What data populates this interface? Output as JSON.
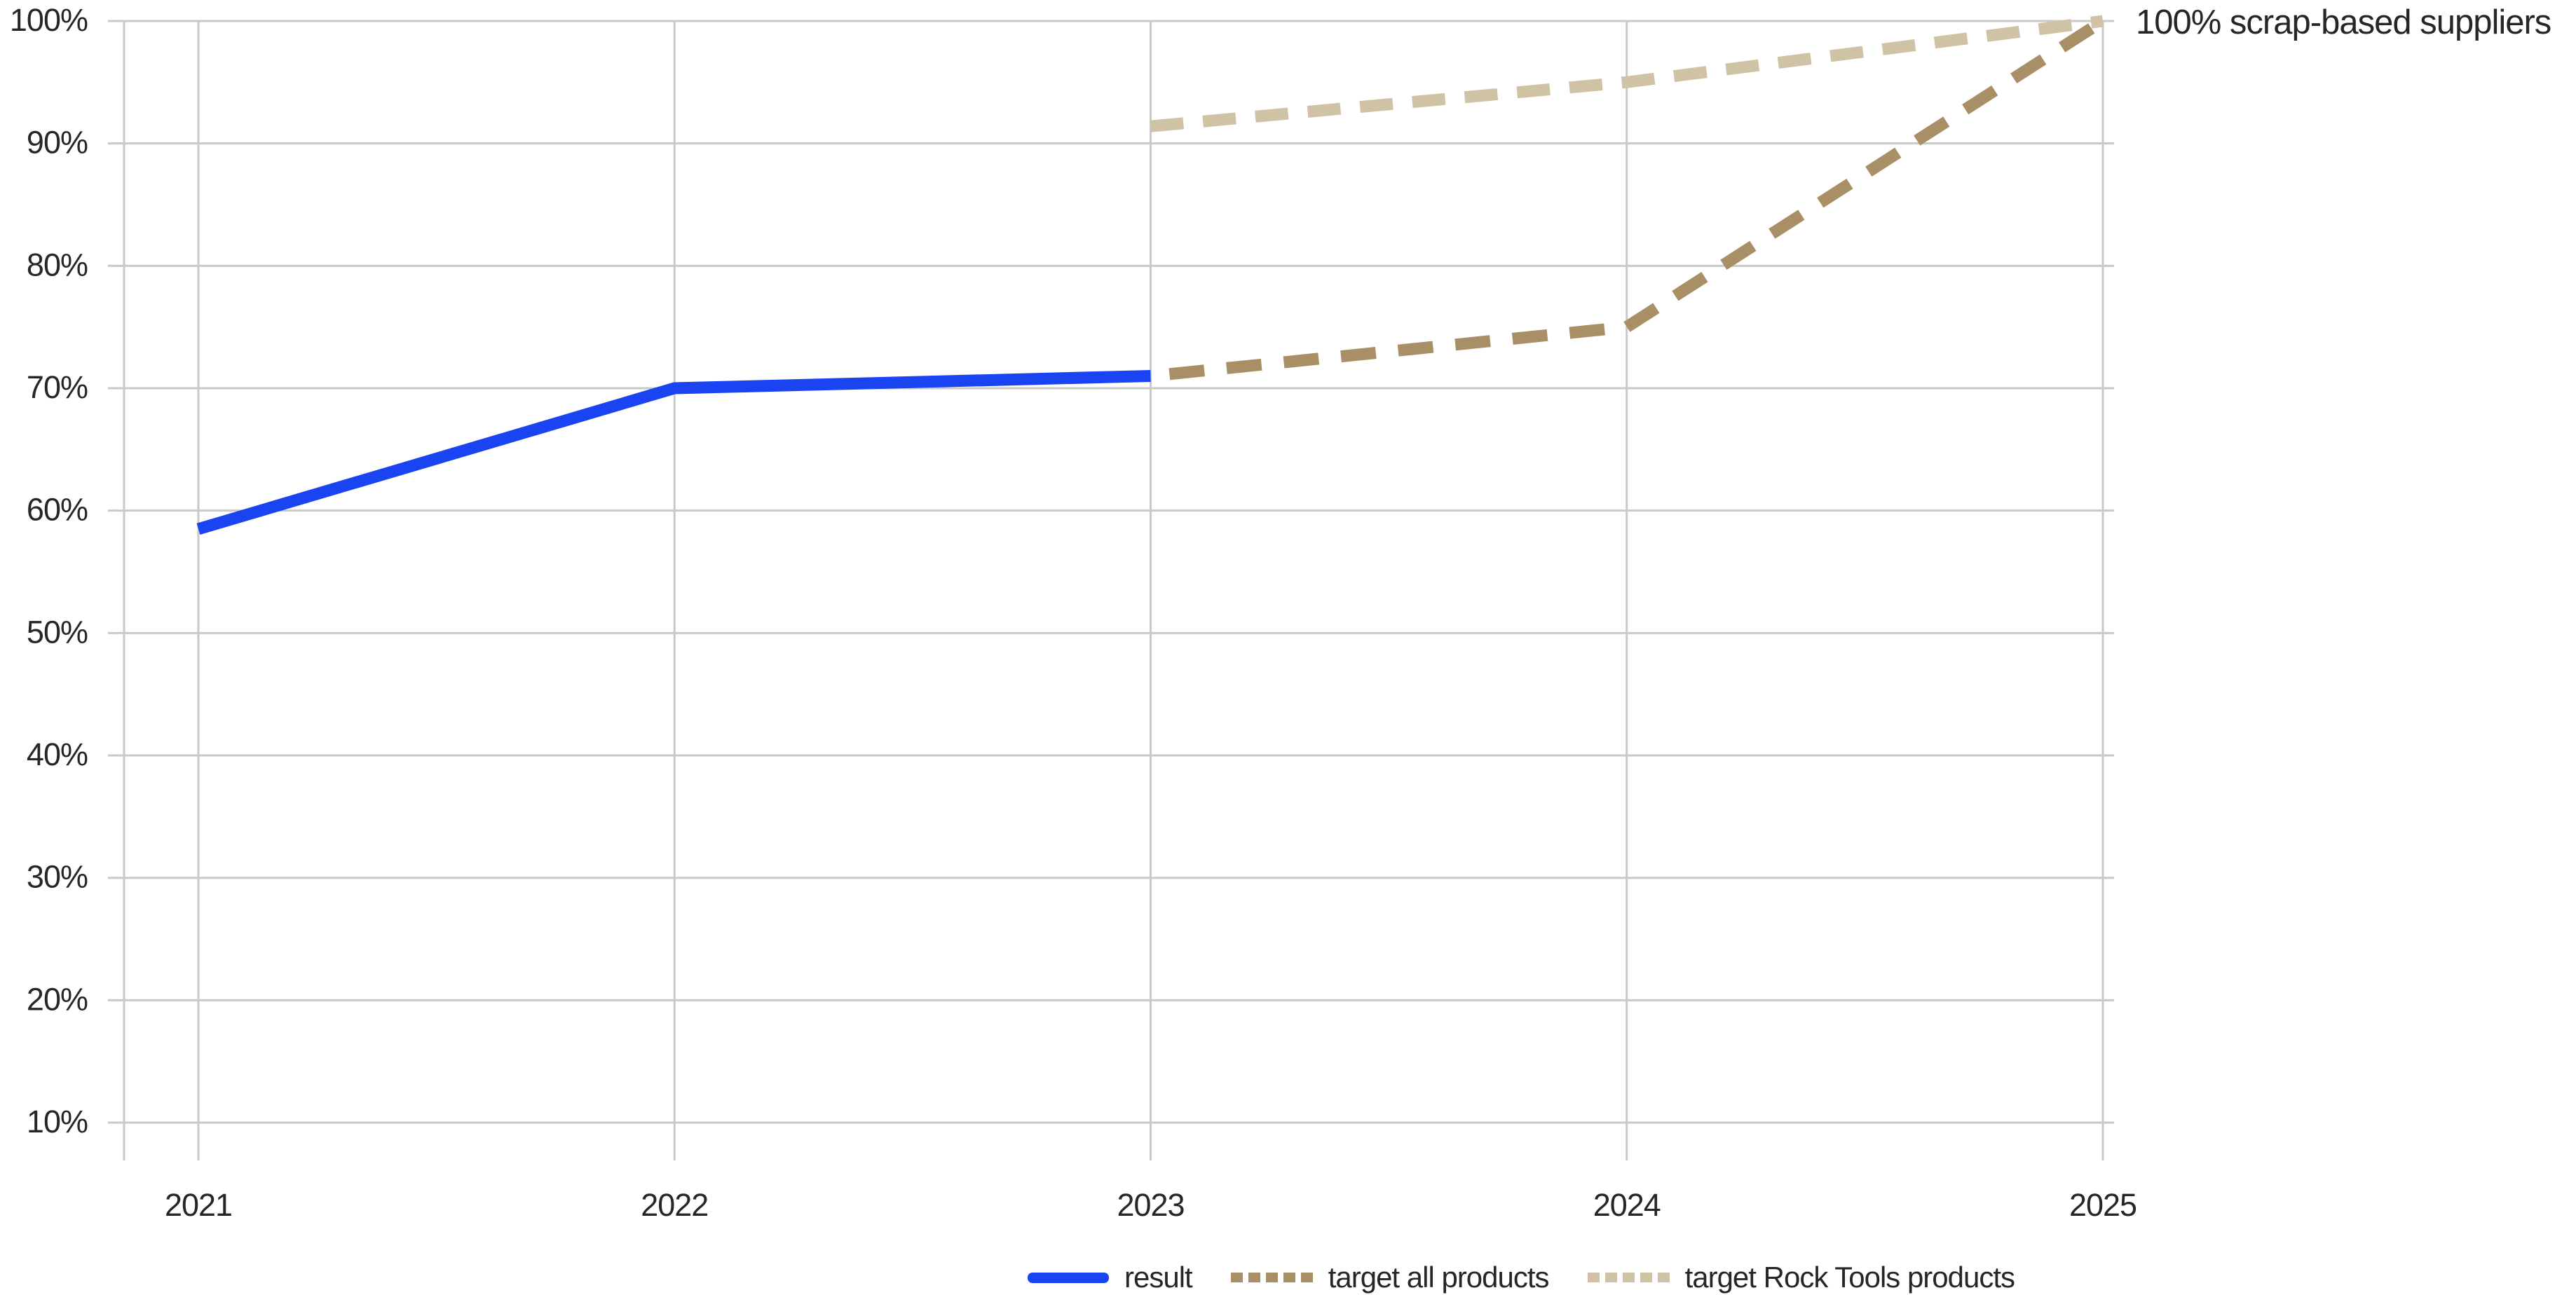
{
  "chart_data": {
    "type": "line",
    "title": "",
    "xlabel": "",
    "ylabel": "",
    "x_labels": [
      "2021",
      "2022",
      "2023",
      "2024",
      "2025"
    ],
    "y_ticks": [
      "10%",
      "20%",
      "30%",
      "40%",
      "50%",
      "60%",
      "70%",
      "80%",
      "90%",
      "100%"
    ],
    "xlim": [
      2021,
      2025
    ],
    "ylim": [
      6,
      100
    ],
    "y_unit": "%",
    "grid": true,
    "legend_position": "bottom",
    "annotation": "100% scrap-based suppliers",
    "series": [
      {
        "name": "result",
        "line_style": "solid",
        "color": "#1a43f2",
        "points": [
          [
            2021,
            58.5
          ],
          [
            2022,
            70
          ],
          [
            2023,
            71
          ]
        ]
      },
      {
        "name": "target all products",
        "line_style": "dashed",
        "color": "#a98f66",
        "points": [
          [
            2023,
            71
          ],
          [
            2024,
            75
          ],
          [
            2025,
            100
          ]
        ]
      },
      {
        "name": "target Rock Tools products",
        "line_style": "dashed",
        "color": "#d0c2a4",
        "points": [
          [
            2023,
            91.4
          ],
          [
            2024,
            95
          ],
          [
            2025,
            100
          ]
        ]
      }
    ]
  },
  "colors": {
    "background": "#ffffff",
    "grid": "#c9c9c9",
    "axis": "#c9c9c9",
    "text": "#262626"
  }
}
